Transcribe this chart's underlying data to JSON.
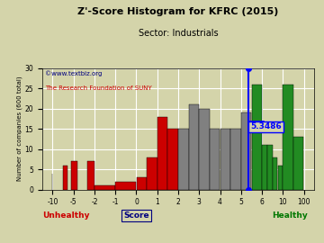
{
  "title": "Z'-Score Histogram for KFRC (2015)",
  "subtitle": "Sector: Industrials",
  "xlabel_center": "Score",
  "xlabel_left": "Unhealthy",
  "xlabel_right": "Healthy",
  "ylabel": "Number of companies (600 total)",
  "watermark1": "©www.textbiz.org",
  "watermark2": "The Research Foundation of SUNY",
  "zscore_value": 5.3486,
  "zscore_label": "5.3486",
  "background_color": "#d4d4aa",
  "grid_color": "#ffffff",
  "watermark_color1": "#000080",
  "watermark_color2": "#cc0000",
  "label_red": "#cc0000",
  "label_green": "#007700",
  "label_score_color": "#000080",
  "RED": "#cc0000",
  "GRAY": "#808080",
  "GREEN": "#228B22",
  "ylim": [
    0,
    30
  ],
  "yticks": [
    0,
    5,
    10,
    15,
    20,
    25,
    30
  ],
  "tick_vals": [
    -10,
    -5,
    -2,
    -1,
    0,
    1,
    2,
    3,
    4,
    5,
    6,
    10,
    100
  ],
  "score_bars": [
    [
      -13,
      -12,
      4,
      "RED"
    ],
    [
      -7.5,
      -6.5,
      6,
      "RED"
    ],
    [
      -5.5,
      -4.5,
      7,
      "RED"
    ],
    [
      -3,
      -2,
      7,
      "RED"
    ],
    [
      -2,
      -1,
      1,
      "RED"
    ],
    [
      -1,
      0,
      2,
      "RED"
    ],
    [
      0,
      0.5,
      3,
      "RED"
    ],
    [
      0.5,
      1.0,
      8,
      "RED"
    ],
    [
      1.0,
      1.5,
      18,
      "RED"
    ],
    [
      1.5,
      2.0,
      15,
      "RED"
    ],
    [
      2.0,
      2.5,
      15,
      "GRAY"
    ],
    [
      2.5,
      3.0,
      21,
      "GRAY"
    ],
    [
      3.0,
      3.5,
      20,
      "GRAY"
    ],
    [
      3.5,
      4.0,
      15,
      "GRAY"
    ],
    [
      4.0,
      4.5,
      15,
      "GRAY"
    ],
    [
      4.5,
      5.0,
      15,
      "GRAY"
    ],
    [
      5.0,
      5.5,
      19,
      "GRAY"
    ],
    [
      5.5,
      6.0,
      26,
      "GREEN"
    ],
    [
      6.0,
      7.0,
      11,
      "GREEN"
    ],
    [
      7.0,
      8.0,
      11,
      "GREEN"
    ],
    [
      8.0,
      9.0,
      8,
      "GREEN"
    ],
    [
      9.0,
      10.0,
      6,
      "GREEN"
    ],
    [
      10.0,
      55.0,
      26,
      "GREEN"
    ],
    [
      55.0,
      100.0,
      13,
      "GREEN"
    ]
  ]
}
